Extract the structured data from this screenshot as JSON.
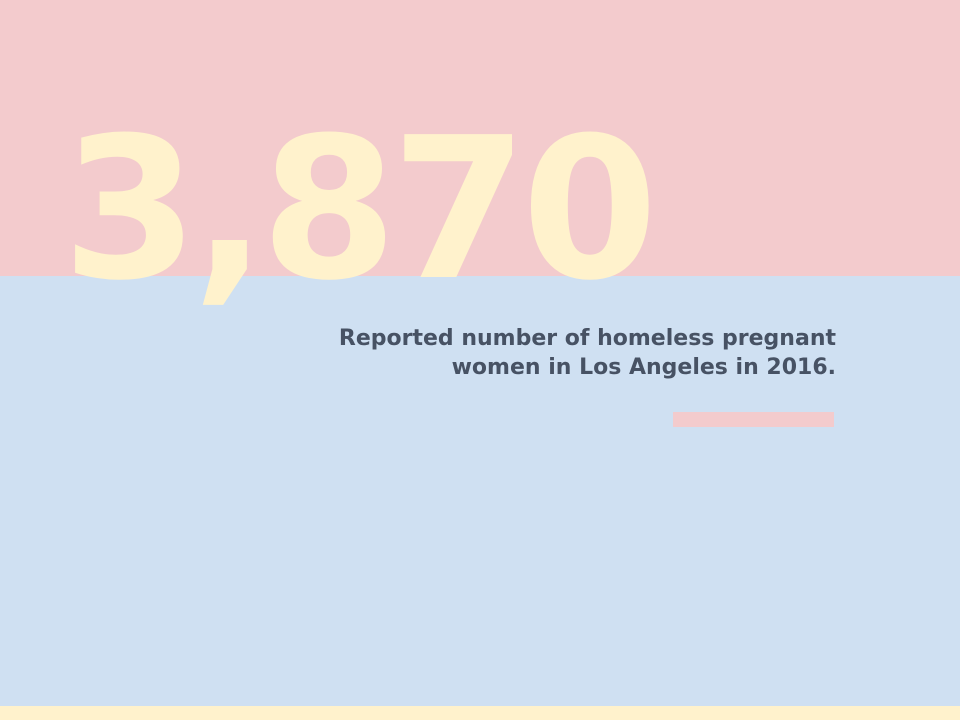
{
  "slide": {
    "big_number": "3,870",
    "caption_line1": "Reported number of homeless pregnant",
    "caption_line2": "women in Los Angeles in 2016."
  },
  "colors": {
    "top_band": "#f3cbcd",
    "bottom_band": "#cfe0f2",
    "big_number": "#fff2cc",
    "caption_text": "#475264",
    "accent_bar": "#f3cbcd",
    "footer_strip": "#fff2cc"
  }
}
